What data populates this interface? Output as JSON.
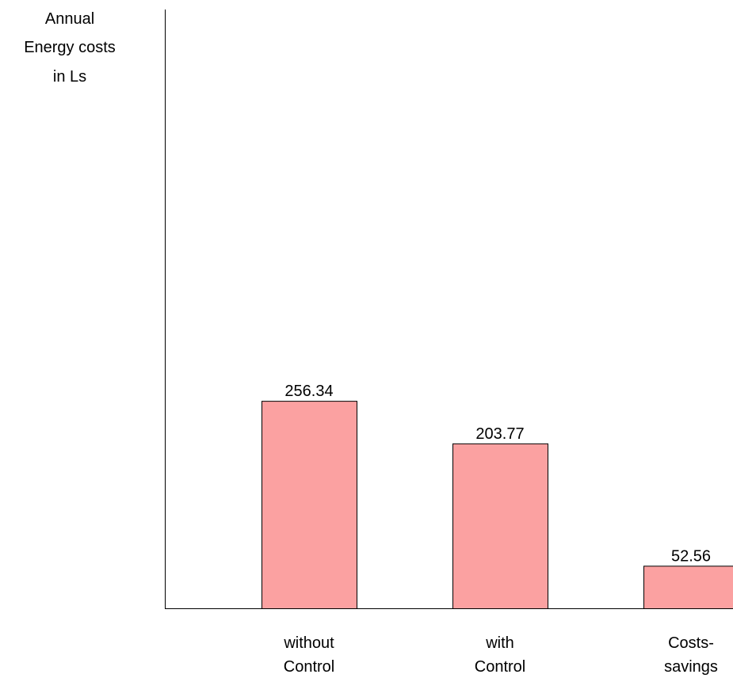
{
  "chart_data": {
    "type": "bar",
    "ylabel_lines": [
      "Annual",
      "Energy costs",
      "in Ls"
    ],
    "categories": [
      [
        "without",
        "Control"
      ],
      [
        "with",
        "Control"
      ],
      [
        "Costs-",
        "savings"
      ]
    ],
    "values": [
      256.34,
      203.77,
      52.56
    ],
    "value_labels": [
      "256.34",
      "203.77",
      "52.56"
    ],
    "ylim": [
      0,
      740
    ],
    "grid": false,
    "bar_color": "#fba1a1",
    "bar_edge_color": "#000000"
  }
}
